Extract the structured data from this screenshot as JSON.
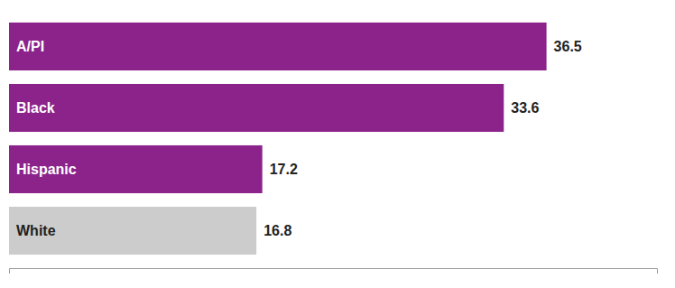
{
  "chart_data": {
    "type": "bar",
    "orientation": "horizontal",
    "categories": [
      "A/PI",
      "Black",
      "Hispanic",
      "White"
    ],
    "values": [
      36.5,
      33.6,
      17.2,
      16.8
    ],
    "colors": [
      "#8B238B",
      "#8B238B",
      "#8B238B",
      "#cccccc"
    ],
    "xlim": [
      0,
      44
    ],
    "data_labels": true,
    "tick_labels": false,
    "grid": false
  }
}
